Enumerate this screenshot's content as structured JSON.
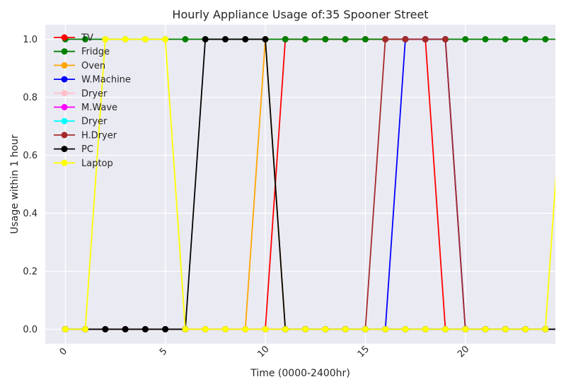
{
  "chart_data": {
    "type": "line",
    "title": "Hourly Appliance Usage of:35 Spooner Street",
    "xlabel": "Time (0000-2400hr)",
    "ylabel": "Usage within 1 hour",
    "xlim": [
      -1,
      24.5
    ],
    "ylim": [
      -0.05,
      1.05
    ],
    "xticks": [
      0,
      5,
      10,
      15,
      20
    ],
    "xtick_labels": [
      "0",
      "5",
      "10",
      "15",
      "20"
    ],
    "yticks": [
      0.0,
      0.2,
      0.4,
      0.6,
      0.8,
      1.0
    ],
    "ytick_labels": [
      "0.0",
      "0.2",
      "0.4",
      "0.6",
      "0.8",
      "1.0"
    ],
    "grid": true,
    "legend_position": "top-left",
    "x": [
      0,
      1,
      2,
      3,
      4,
      5,
      6,
      7,
      8,
      9,
      10,
      11,
      12,
      13,
      14,
      15,
      16,
      17,
      18,
      19,
      20,
      21,
      22,
      23,
      24,
      25
    ],
    "series": [
      {
        "name": "TV",
        "color": "#ff0000",
        "values": [
          0,
          0,
          0,
          0,
          0,
          0,
          0,
          0,
          0,
          0,
          0,
          1,
          1,
          1,
          1,
          1,
          1,
          1,
          1,
          0,
          0,
          0,
          0,
          0,
          0,
          0
        ]
      },
      {
        "name": "Fridge",
        "color": "#008000",
        "values": [
          1,
          1,
          1,
          1,
          1,
          1,
          1,
          1,
          1,
          1,
          1,
          1,
          1,
          1,
          1,
          1,
          1,
          1,
          1,
          1,
          1,
          1,
          1,
          1,
          1,
          1
        ]
      },
      {
        "name": "Oven",
        "color": "#ffa500",
        "values": [
          0,
          0,
          0,
          0,
          0,
          0,
          0,
          0,
          0,
          0,
          1,
          0,
          0,
          0,
          0,
          0,
          0,
          0,
          0,
          0,
          0,
          0,
          0,
          0,
          0,
          0
        ]
      },
      {
        "name": "W.Machine",
        "color": "#0000ff",
        "values": [
          0,
          0,
          0,
          0,
          0,
          0,
          0,
          0,
          0,
          0,
          0,
          0,
          0,
          0,
          0,
          0,
          0,
          1,
          1,
          1,
          0,
          0,
          0,
          0,
          0,
          0
        ]
      },
      {
        "name": "Dryer",
        "color": "#ffc0cb",
        "values": [
          0,
          0,
          0,
          0,
          0,
          0,
          0,
          0,
          0,
          0,
          0,
          0,
          0,
          0,
          0,
          0,
          0,
          0,
          0,
          0,
          0,
          0,
          0,
          0,
          0,
          0
        ]
      },
      {
        "name": "M.Wave",
        "color": "#ff00ff",
        "values": [
          0,
          0,
          0,
          0,
          0,
          0,
          0,
          0,
          0,
          0,
          0,
          0,
          0,
          0,
          0,
          0,
          0,
          0,
          0,
          0,
          0,
          0,
          0,
          0,
          0,
          0
        ]
      },
      {
        "name": "Dryer",
        "color": "#00ffff",
        "values": [
          0,
          0,
          0,
          0,
          0,
          0,
          0,
          0,
          0,
          0,
          0,
          0,
          0,
          0,
          0,
          0,
          0,
          0,
          0,
          0,
          0,
          0,
          0,
          0,
          0,
          0
        ]
      },
      {
        "name": "H.Dryer",
        "color": "#a52a2a",
        "values": [
          0,
          0,
          0,
          0,
          0,
          0,
          0,
          0,
          0,
          0,
          0,
          0,
          0,
          0,
          0,
          0,
          1,
          1,
          1,
          1,
          0,
          0,
          0,
          0,
          0,
          0
        ]
      },
      {
        "name": "PC",
        "color": "#000000",
        "values": [
          0,
          0,
          0,
          0,
          0,
          0,
          0,
          1,
          1,
          1,
          1,
          0,
          0,
          0,
          0,
          0,
          0,
          0,
          0,
          0,
          0,
          0,
          0,
          0,
          0,
          0
        ]
      },
      {
        "name": "Laptop",
        "color": "#ffff00",
        "values": [
          0,
          0,
          1,
          1,
          1,
          1,
          0,
          0,
          0,
          0,
          0,
          0,
          0,
          0,
          0,
          0,
          0,
          0,
          0,
          0,
          0,
          0,
          0,
          0,
          0,
          1
        ]
      }
    ]
  }
}
